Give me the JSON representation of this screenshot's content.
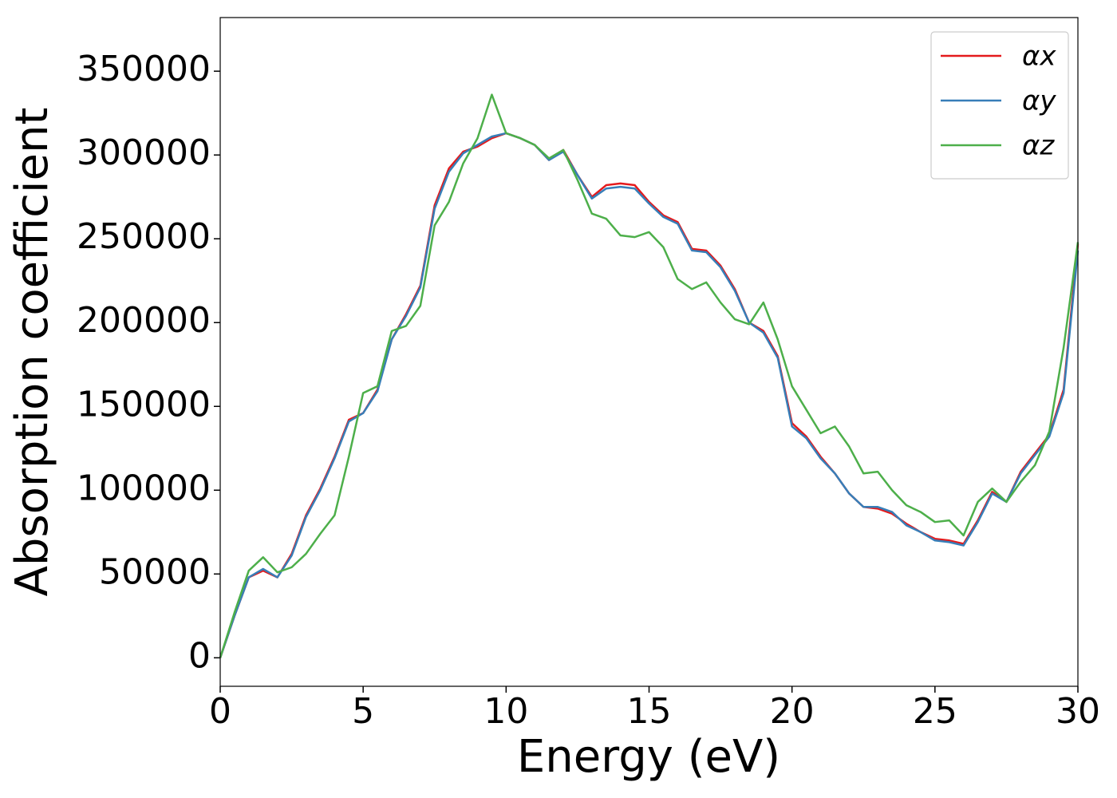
{
  "chart_data": {
    "type": "line",
    "xlabel": "Energy (eV)",
    "ylabel": "Absorption coefficient",
    "x": [
      0,
      0.5,
      1,
      1.5,
      2,
      2.5,
      3,
      3.5,
      4,
      4.5,
      5,
      5.5,
      6,
      6.5,
      7,
      7.5,
      8,
      8.5,
      9,
      9.5,
      10,
      10.5,
      11,
      11.5,
      12,
      12.5,
      13,
      13.5,
      14,
      14.5,
      15,
      15.5,
      16,
      16.5,
      17,
      17.5,
      18,
      18.5,
      19,
      19.5,
      20,
      20.5,
      21,
      21.5,
      22,
      22.5,
      23,
      23.5,
      24,
      24.5,
      25,
      25.5,
      26,
      26.5,
      27,
      27.5,
      28,
      28.5,
      29,
      29.5,
      30
    ],
    "series": [
      {
        "name": "αx",
        "color": "#e41a1c",
        "values": [
          0,
          25000,
          48000,
          52000,
          48000,
          62000,
          85000,
          101000,
          120000,
          142000,
          146000,
          160000,
          190000,
          205000,
          222000,
          270000,
          292000,
          302000,
          305000,
          310000,
          313000,
          310000,
          306000,
          297000,
          303000,
          288000,
          275000,
          282000,
          283000,
          282000,
          272000,
          264000,
          260000,
          244000,
          243000,
          234000,
          220000,
          200000,
          195000,
          180000,
          140000,
          132000,
          120000,
          110000,
          98000,
          90000,
          89000,
          86000,
          80000,
          75000,
          71000,
          70000,
          68000,
          82000,
          99000,
          93000,
          111000,
          122000,
          133000,
          160000,
          247000
        ]
      },
      {
        "name": "αy",
        "color": "#377eb8",
        "values": [
          0,
          25000,
          48000,
          53000,
          48000,
          61000,
          84000,
          100000,
          119000,
          141000,
          146000,
          159000,
          190000,
          204000,
          221000,
          268000,
          290000,
          301000,
          306000,
          311000,
          313000,
          310000,
          306000,
          297000,
          302000,
          288000,
          274000,
          280000,
          281000,
          280000,
          271000,
          263000,
          259000,
          243000,
          242000,
          233000,
          219000,
          200000,
          194000,
          179000,
          138000,
          131000,
          119000,
          110000,
          98000,
          90000,
          90000,
          87000,
          79000,
          75000,
          70000,
          69000,
          67000,
          81000,
          98000,
          93000,
          110000,
          121000,
          132000,
          158000,
          243000
        ]
      },
      {
        "name": "αz",
        "color": "#4daf4a",
        "values": [
          0,
          27000,
          52000,
          60000,
          51000,
          54000,
          62000,
          74000,
          85000,
          120000,
          158000,
          162000,
          195000,
          198000,
          210000,
          258000,
          272000,
          295000,
          310000,
          336000,
          313000,
          310000,
          306000,
          298000,
          303000,
          285000,
          265000,
          262000,
          252000,
          251000,
          254000,
          245000,
          226000,
          220000,
          224000,
          212000,
          202000,
          199000,
          212000,
          190000,
          162000,
          148000,
          134000,
          138000,
          126000,
          110000,
          111000,
          100000,
          91000,
          87000,
          81000,
          82000,
          73000,
          93000,
          101000,
          93000,
          105000,
          115000,
          135000,
          185000,
          248000
        ]
      }
    ],
    "xlim": [
      0,
      30
    ],
    "xticks": [
      0,
      5,
      10,
      15,
      20,
      25,
      30
    ],
    "ylim": [
      -17000,
      382000
    ],
    "yticks": [
      0,
      50000,
      100000,
      150000,
      200000,
      250000,
      300000,
      350000
    ],
    "legend": "upper right",
    "grid": false
  }
}
